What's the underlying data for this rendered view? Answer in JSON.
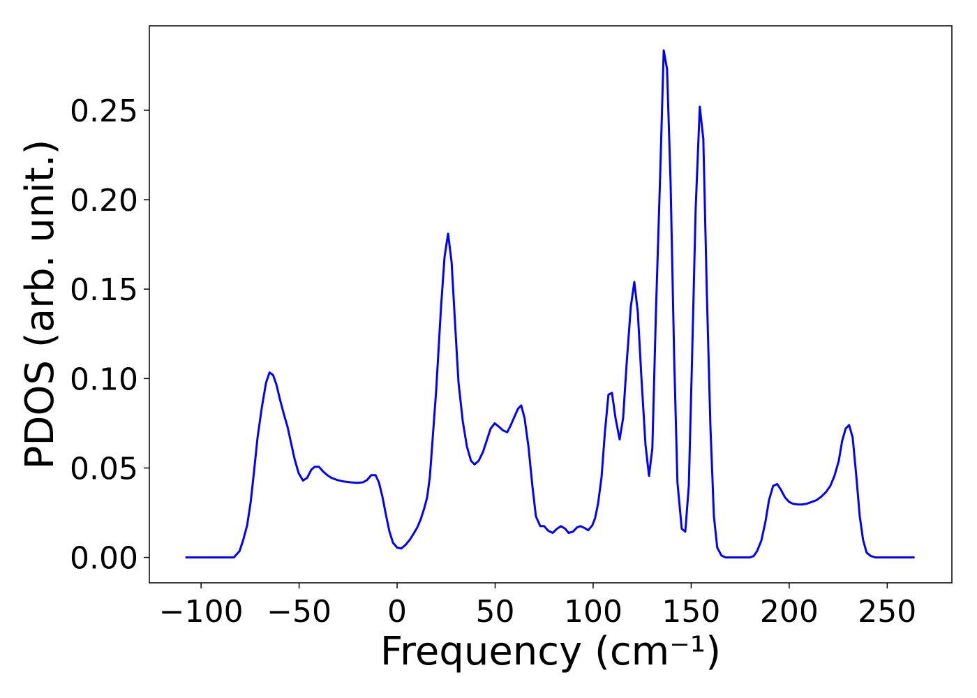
{
  "chart_data": {
    "type": "line",
    "xlabel": "Frequency (cm⁻¹)",
    "ylabel": "PDOS (arb. unit.)",
    "x": [
      -108,
      -83.3,
      -80.4,
      -78.6,
      -76.5,
      -74.7,
      -73,
      -71.2,
      -69,
      -66.9,
      -65.1,
      -63.3,
      -61.6,
      -59.8,
      -58,
      -55.9,
      -54.1,
      -52.3,
      -50.2,
      -48,
      -45.9,
      -43.8,
      -42,
      -39.9,
      -37.7,
      -35.6,
      -33.5,
      -30.6,
      -27.4,
      -23.8,
      -20.3,
      -17.4,
      -15.3,
      -13.2,
      -11,
      -9.3,
      -7.5,
      -5.7,
      -3.9,
      -2.1,
      0,
      2.1,
      4.3,
      6.4,
      8.2,
      10.3,
      12.1,
      13.9,
      15.3,
      16.7,
      19.9,
      22.4,
      24.2,
      26,
      27.8,
      29.5,
      31.3,
      33.5,
      35.6,
      37.7,
      39.5,
      41.6,
      43.8,
      45.6,
      47.7,
      49.8,
      52,
      54,
      56.2,
      58,
      60,
      61.6,
      63.3,
      65,
      67,
      69,
      70.8,
      73,
      75,
      77,
      79.4,
      81.5,
      83.6,
      85.8,
      87.5,
      89.7,
      91.8,
      93.6,
      95.7,
      97.5,
      99.6,
      101,
      102.5,
      104.3,
      106,
      107.8,
      109.6,
      111.4,
      113.5,
      115.3,
      117,
      119.2,
      121,
      122.8,
      124.6,
      126.7,
      128.5,
      130.2,
      132,
      134.2,
      136,
      137.7,
      139.5,
      141.3,
      143,
      145.2,
      147,
      148.8,
      150.5,
      152.3,
      154.4,
      156.2,
      158,
      159.8,
      161.6,
      163.3,
      165.5,
      167.6,
      180,
      181.9,
      183.6,
      185.8,
      187.9,
      189.7,
      191.8,
      193.9,
      195.7,
      197.9,
      200,
      202,
      204.3,
      206.8,
      208.9,
      211.4,
      213.9,
      216.4,
      218.9,
      221,
      223.1,
      225.3,
      227,
      228.8,
      230.6,
      232.4,
      234.2,
      236,
      237.7,
      239.5,
      241.6,
      244,
      264
    ],
    "series": [
      {
        "name": "PDOS",
        "color": "#0000ff",
        "values": [
          0,
          0,
          0.0035,
          0.0094,
          0.018,
          0.031,
          0.048,
          0.067,
          0.084,
          0.0975,
          0.1034,
          0.102,
          0.0967,
          0.0885,
          0.081,
          0.073,
          0.064,
          0.055,
          0.047,
          0.043,
          0.0445,
          0.049,
          0.0507,
          0.0507,
          0.048,
          0.046,
          0.0445,
          0.0433,
          0.0425,
          0.042,
          0.0417,
          0.042,
          0.0433,
          0.046,
          0.046,
          0.042,
          0.034,
          0.0238,
          0.0144,
          0.0082,
          0.0055,
          0.005,
          0.007,
          0.0098,
          0.0129,
          0.0168,
          0.0215,
          0.0277,
          0.0335,
          0.045,
          0.093,
          0.14,
          0.168,
          0.181,
          0.165,
          0.132,
          0.098,
          0.076,
          0.062,
          0.054,
          0.052,
          0.054,
          0.059,
          0.065,
          0.072,
          0.075,
          0.073,
          0.071,
          0.07,
          0.074,
          0.079,
          0.083,
          0.085,
          0.078,
          0.062,
          0.04,
          0.023,
          0.0175,
          0.0175,
          0.015,
          0.0137,
          0.016,
          0.0175,
          0.016,
          0.0137,
          0.0144,
          0.0168,
          0.0175,
          0.0164,
          0.0152,
          0.018,
          0.022,
          0.03,
          0.045,
          0.07,
          0.091,
          0.092,
          0.078,
          0.066,
          0.078,
          0.107,
          0.14,
          0.154,
          0.137,
          0.101,
          0.063,
          0.0456,
          0.061,
          0.136,
          0.214,
          0.2835,
          0.273,
          0.21,
          0.113,
          0.042,
          0.016,
          0.0144,
          0.04,
          0.113,
          0.195,
          0.252,
          0.234,
          0.148,
          0.074,
          0.023,
          0.0055,
          0.001,
          0,
          0,
          0.0008,
          0.0035,
          0.0094,
          0.02,
          0.032,
          0.04,
          0.041,
          0.038,
          0.0335,
          0.031,
          0.03,
          0.0296,
          0.0296,
          0.03,
          0.031,
          0.032,
          0.034,
          0.0367,
          0.04,
          0.0456,
          0.054,
          0.065,
          0.072,
          0.074,
          0.067,
          0.046,
          0.023,
          0.0098,
          0.0027,
          0.0008,
          0,
          0
        ]
      }
    ],
    "xlim": [
      -126.4,
      283
    ],
    "ylim": [
      -0.0142,
      0.2972
    ],
    "xticks": [
      {
        "value": -100,
        "label": "−100"
      },
      {
        "value": -50,
        "label": "−50"
      },
      0,
      50,
      100,
      150,
      200,
      250
    ],
    "yticks": [
      {
        "value": 0,
        "label": "0.00"
      },
      0.05,
      {
        "value": 0.1,
        "label": "0.10"
      },
      0.15,
      {
        "value": 0.2,
        "label": "0.20"
      },
      0.25
    ],
    "grid": false
  }
}
